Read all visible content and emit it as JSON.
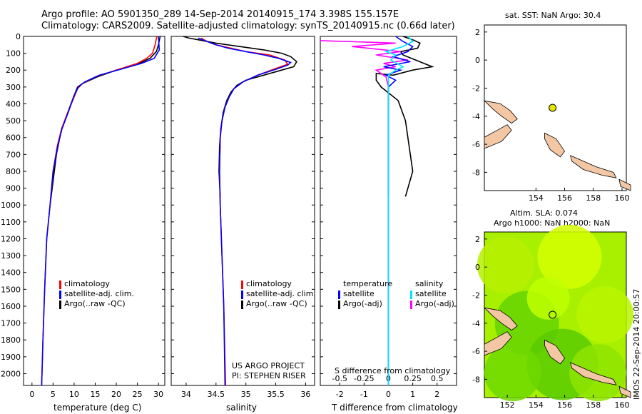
{
  "header": {
    "line1": "Argo profile: AO 5901350_289 14-Sep-2014 20140915_174 3.398S 155.157E",
    "line2": "Climatology: CARS2009. Satellite-adjusted climatology: synTS_20140915.nc (0.66d later)"
  },
  "colors": {
    "climatology": "#ff0000",
    "satellite": "#0000ff",
    "argo": "#000000",
    "argo_adj_sal": "#ff00ff",
    "satellite_sal": "#00e5ff",
    "land": "#f3c7a4",
    "sla_green": "#7ee000",
    "sla_light": "#c8ff00",
    "buoy": "#e5e500"
  },
  "chart_data": [
    {
      "id": "temperature",
      "type": "line",
      "xlabel": "temperature (deg C)",
      "ylabel": "",
      "xlim": [
        -2,
        31.5
      ],
      "ylim": [
        2070,
        0
      ],
      "xticks": [
        0,
        5,
        10,
        15,
        20,
        25,
        30
      ],
      "yticks": [
        0,
        100,
        200,
        300,
        400,
        500,
        600,
        700,
        800,
        900,
        1000,
        1100,
        1200,
        1300,
        1400,
        1500,
        1600,
        1700,
        1800,
        1900,
        2000
      ],
      "legend": [
        "climatology",
        "satellite-adj. clim.",
        "Argo(..raw -QC)"
      ],
      "series": [
        {
          "name": "climatology",
          "color": "#ff0000",
          "points": [
            [
              29.6,
              0
            ],
            [
              29.2,
              50
            ],
            [
              28.6,
              100
            ],
            [
              27.2,
              130
            ],
            [
              25,
              160
            ],
            [
              20,
              200
            ],
            [
              15,
              240
            ],
            [
              12,
              280
            ],
            [
              10.8,
              310
            ],
            [
              10,
              360
            ],
            [
              8.5,
              450
            ],
            [
              7,
              550
            ],
            [
              6,
              650
            ],
            [
              5,
              800
            ],
            [
              4.3,
              1000
            ],
            [
              3.5,
              1200
            ],
            [
              3,
              1500
            ],
            [
              2.6,
              1800
            ],
            [
              2.3,
              2070
            ]
          ]
        },
        {
          "name": "satellite-adj. clim.",
          "color": "#0000ff",
          "points": [
            [
              30,
              0
            ],
            [
              30.1,
              40
            ],
            [
              30.2,
              80
            ],
            [
              29,
              130
            ],
            [
              26,
              160
            ],
            [
              21,
              195
            ],
            [
              16,
              230
            ],
            [
              12.5,
              270
            ],
            [
              11,
              300
            ],
            [
              10,
              350
            ],
            [
              8.6,
              450
            ],
            [
              7.1,
              550
            ],
            [
              6.1,
              650
            ],
            [
              5,
              800
            ],
            [
              4.3,
              1000
            ],
            [
              3.5,
              1200
            ],
            [
              3,
              1500
            ],
            [
              2.6,
              1800
            ],
            [
              2.3,
              2070
            ]
          ]
        },
        {
          "name": "Argo(..raw -QC)",
          "color": "#000000",
          "points": [
            [
              30.4,
              0
            ],
            [
              30,
              50
            ],
            [
              29.5,
              90
            ],
            [
              28,
              130
            ],
            [
              25,
              165
            ],
            [
              20,
              200
            ],
            [
              15.5,
              240
            ],
            [
              12,
              280
            ],
            [
              10.8,
              300
            ],
            [
              10,
              350
            ],
            [
              8.5,
              450
            ],
            [
              7,
              550
            ],
            [
              5.8,
              700
            ],
            [
              4.8,
              900
            ],
            [
              4.3,
              1000
            ]
          ]
        }
      ]
    },
    {
      "id": "salinity",
      "type": "line",
      "xlabel": "salinity",
      "ylabel": "",
      "xlim": [
        33.75,
        36.15
      ],
      "ylim": [
        2070,
        0
      ],
      "xticks": [
        34,
        34.5,
        35,
        35.5,
        36
      ],
      "legend": [
        "climatology",
        "satellite-adj. clim.",
        "Argo(..raw -QC)"
      ],
      "annotations": [
        "US ARGO PROJECT",
        "PI: STEPHEN RISER"
      ],
      "series": [
        {
          "name": "climatology",
          "color": "#ff0000",
          "points": [
            [
              34.25,
              10
            ],
            [
              34.35,
              30
            ],
            [
              34.5,
              50
            ],
            [
              34.75,
              70
            ],
            [
              35,
              90
            ],
            [
              35.4,
              110
            ],
            [
              35.65,
              140
            ],
            [
              35.7,
              165
            ],
            [
              35.5,
              190
            ],
            [
              35.2,
              230
            ],
            [
              34.95,
              270
            ],
            [
              34.8,
              310
            ],
            [
              34.72,
              360
            ],
            [
              34.65,
              420
            ],
            [
              34.6,
              500
            ],
            [
              34.57,
              600
            ],
            [
              34.56,
              800
            ],
            [
              34.57,
              1000
            ],
            [
              34.6,
              1300
            ],
            [
              34.63,
              1600
            ],
            [
              34.66,
              2070
            ]
          ]
        },
        {
          "name": "satellite-adj. clim.",
          "color": "#0000ff",
          "points": [
            [
              34.2,
              10
            ],
            [
              34.35,
              30
            ],
            [
              34.5,
              50
            ],
            [
              34.7,
              70
            ],
            [
              35,
              90
            ],
            [
              35.3,
              110
            ],
            [
              35.55,
              130
            ],
            [
              35.75,
              155
            ],
            [
              35.7,
              170
            ],
            [
              35.5,
              195
            ],
            [
              35.2,
              230
            ],
            [
              34.95,
              270
            ],
            [
              34.8,
              310
            ],
            [
              34.72,
              360
            ],
            [
              34.65,
              420
            ],
            [
              34.6,
              500
            ],
            [
              34.57,
              600
            ],
            [
              34.56,
              800
            ],
            [
              34.57,
              1000
            ],
            [
              34.6,
              1300
            ],
            [
              34.63,
              1600
            ],
            [
              34.65,
              2070
            ]
          ]
        },
        {
          "name": "Argo(..raw -QC)",
          "color": "#000000",
          "points": [
            [
              33.95,
              0
            ],
            [
              34.05,
              10
            ],
            [
              34.2,
              20
            ],
            [
              34.5,
              40
            ],
            [
              34.9,
              60
            ],
            [
              35.3,
              80
            ],
            [
              35.6,
              100
            ],
            [
              35.75,
              120
            ],
            [
              35.85,
              150
            ],
            [
              35.8,
              180
            ],
            [
              35.6,
              200
            ],
            [
              35.3,
              230
            ],
            [
              35,
              260
            ],
            [
              34.85,
              290
            ],
            [
              34.75,
              330
            ],
            [
              34.68,
              380
            ],
            [
              34.62,
              450
            ],
            [
              34.58,
              550
            ],
            [
              34.56,
              650
            ],
            [
              34.55,
              800
            ],
            [
              34.57,
              950
            ]
          ]
        }
      ]
    },
    {
      "id": "difference",
      "type": "line",
      "xlabel": "T difference from climatology",
      "x2label": "S difference from climatology",
      "xlim": [
        -2.8,
        2.8
      ],
      "ylim": [
        2070,
        0
      ],
      "xticks": [
        -2,
        -1,
        0,
        1,
        2
      ],
      "x2ticks": [
        "-0.5",
        "-0.25",
        "0",
        "0.25",
        "0.5"
      ],
      "legend_titles": [
        "temperature",
        "salinity"
      ],
      "legend": [
        "satellite",
        "Argo(-adj)",
        "satellite",
        "Argo(-adj)"
      ],
      "series": [
        {
          "name": "satellite",
          "quantity": "temperature",
          "color": "#0000ff",
          "points": [
            [
              0.3,
              0
            ],
            [
              0.6,
              30
            ],
            [
              1,
              60
            ],
            [
              0.8,
              90
            ],
            [
              0.2,
              120
            ],
            [
              0.9,
              150
            ],
            [
              -0.2,
              180
            ],
            [
              0.5,
              200
            ],
            [
              -0.1,
              230
            ],
            [
              0.3,
              260
            ],
            [
              0,
              300
            ],
            [
              0,
              350
            ],
            [
              0,
              500
            ],
            [
              0,
              1000
            ],
            [
              0,
              2070
            ]
          ]
        },
        {
          "name": "Argo(-adj)",
          "quantity": "temperature",
          "color": "#000000",
          "points": [
            [
              0.6,
              0
            ],
            [
              1,
              20
            ],
            [
              1.3,
              40
            ],
            [
              1.2,
              70
            ],
            [
              0.5,
              90
            ],
            [
              0.6,
              110
            ],
            [
              1.8,
              180
            ],
            [
              1,
              200
            ],
            [
              0.2,
              230
            ],
            [
              -0.5,
              220
            ],
            [
              -0.5,
              260
            ],
            [
              -0.3,
              300
            ],
            [
              0.4,
              380
            ],
            [
              0.7,
              500
            ],
            [
              0.9,
              700
            ],
            [
              1,
              800
            ],
            [
              0.8,
              900
            ],
            [
              0.7,
              950
            ]
          ]
        },
        {
          "name": "satellite",
          "quantity": "salinity",
          "color": "#00e5ff",
          "points": [
            [
              0.8,
              0
            ],
            [
              1,
              30
            ],
            [
              0.6,
              60
            ],
            [
              -0.1,
              90
            ],
            [
              0.3,
              110
            ],
            [
              0.1,
              140
            ],
            [
              0.6,
              180
            ],
            [
              0.3,
              200
            ],
            [
              0,
              230
            ],
            [
              0,
              280
            ],
            [
              0,
              400
            ],
            [
              0,
              800
            ],
            [
              0,
              1500
            ],
            [
              0,
              2070
            ]
          ]
        },
        {
          "name": "Argo(-adj)",
          "quantity": "salinity",
          "color": "#ff00ff",
          "points": [
            [
              -2.8,
              25
            ],
            [
              0.3,
              40
            ],
            [
              -1.5,
              60
            ],
            [
              0.5,
              90
            ],
            [
              -0.5,
              110
            ],
            [
              0.8,
              140
            ],
            [
              -0.2,
              160
            ],
            [
              0.3,
              180
            ],
            [
              -0.5,
              200
            ],
            [
              -0.1,
              240
            ],
            [
              0,
              300
            ],
            [
              0,
              400
            ],
            [
              0,
              600
            ],
            [
              0,
              800
            ],
            [
              0,
              950
            ]
          ]
        }
      ]
    }
  ],
  "maps": {
    "sst": {
      "title": "sat. SST: NaN  Argo: 30.4",
      "xticks": [
        "154",
        "156",
        "158",
        "160"
      ],
      "yticks": [
        "2",
        "0",
        "-2",
        "-4",
        "-6",
        "-8"
      ],
      "float": {
        "lon": 155.157,
        "lat": -3.398
      }
    },
    "sla": {
      "title1": "Altim. SLA: 0.074",
      "title2": "Argo h1000: NaN  h2000: NaN",
      "xticks": [
        "152",
        "154",
        "156",
        "158",
        "160"
      ],
      "yticks": [
        "2",
        "0",
        "-2",
        "-4",
        "-6",
        "-8"
      ],
      "float": {
        "lon": 155.157,
        "lat": -3.398
      }
    }
  },
  "footer": {
    "stamp": "IMOS 22-Sep-2014 20:00:57"
  }
}
